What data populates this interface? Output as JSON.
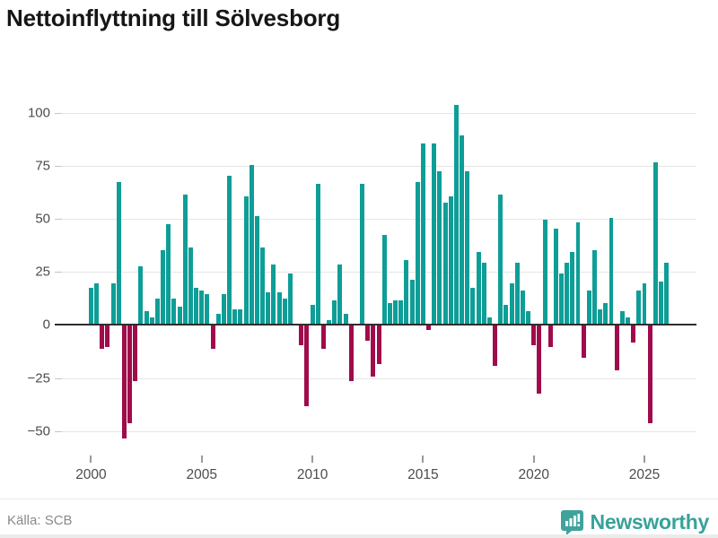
{
  "title": "Nettoinflyttning till Sölvesborg",
  "source": "Källa: SCB",
  "branding": {
    "name": "Newsworthy",
    "icon": "bar-chart-speech-bubble"
  },
  "colors": {
    "positive_bar": "#0e9e97",
    "negative_bar": "#a00b4b",
    "brand_teal": "#38a29a",
    "axis_line": "#2e2e2e",
    "gridline": "#e6e6e6",
    "label_gray": "#4c4c4c",
    "source_gray": "#8a8a8a"
  },
  "chart_data": {
    "type": "bar",
    "title": "Nettoinflyttning till Sölvesborg",
    "xlabel": "",
    "ylabel": "",
    "frequency": "quarterly",
    "start_period": {
      "year": 2000,
      "quarter": 1
    },
    "x_tick_years": [
      2000,
      2005,
      2010,
      2015,
      2020,
      2025
    ],
    "x_tick_labels": [
      "2000",
      "2005",
      "2010",
      "2015",
      "2020",
      "2025"
    ],
    "y_ticks": [
      100,
      75,
      50,
      25,
      0,
      -25,
      -50
    ],
    "y_tick_labels": [
      "100",
      "75",
      "50",
      "25",
      "0",
      "−25",
      "−50"
    ],
    "ylim": [
      -57,
      111
    ],
    "grid": "horizontal",
    "legend": "none",
    "values": [
      17,
      19,
      -11,
      -10,
      19,
      67,
      -53,
      -46,
      -26,
      27,
      6,
      3,
      12,
      35,
      47,
      12,
      8,
      61,
      36,
      17,
      16,
      14,
      -11,
      5,
      14,
      70,
      7,
      7,
      60,
      75,
      51,
      36,
      15,
      28,
      15,
      12,
      24,
      0,
      -9,
      -38,
      9,
      66,
      -11,
      2,
      11,
      28,
      5,
      -26,
      0,
      66,
      -7,
      -24,
      -18,
      42,
      10,
      11,
      11,
      30,
      21,
      67,
      85,
      -2,
      85,
      72,
      57,
      60,
      103,
      89,
      72,
      17,
      34,
      29,
      3,
      -19,
      61,
      9,
      19,
      29,
      16,
      6,
      -9,
      -32,
      49,
      -10,
      45,
      24,
      29,
      34,
      48,
      -15,
      16,
      35,
      7,
      10,
      50,
      -21,
      6,
      3,
      -8,
      16,
      19,
      -46,
      76,
      20,
      29
    ]
  }
}
